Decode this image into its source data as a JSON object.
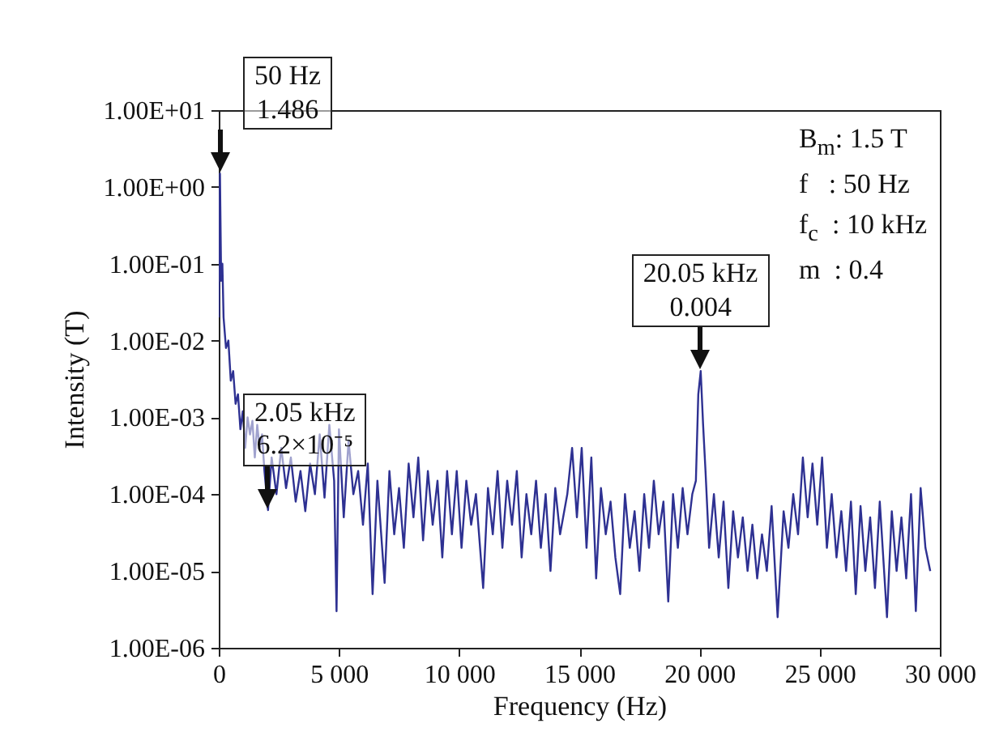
{
  "chart_data": {
    "type": "line",
    "xlabel": "Frequency (Hz)",
    "ylabel": "Intensity (T)",
    "log": "y",
    "grid": false,
    "xlim": [
      0,
      30000
    ],
    "xticks": [
      0,
      {
        "value": 5000,
        "label": "5 000"
      },
      {
        "value": 10000,
        "label": "10 000"
      },
      {
        "value": 15000,
        "label": "15 000"
      },
      {
        "value": 20000,
        "label": "20 000"
      },
      {
        "value": 25000,
        "label": "25 000"
      },
      {
        "value": 30000,
        "label": "30 000"
      }
    ],
    "ylim": [
      1e-06,
      10
    ],
    "yticks": [
      {
        "value": 1e-06,
        "label": "1.00E-06"
      },
      {
        "value": 1e-05,
        "label": "1.00E-05"
      },
      {
        "value": 0.0001,
        "label": "1.00E-04"
      },
      {
        "value": 0.001,
        "label": "1.00E-03"
      },
      {
        "value": 0.01,
        "label": "1.00E-02"
      },
      {
        "value": 0.1,
        "label": "1.00E-01"
      },
      {
        "value": 1,
        "label": "1.00E+00"
      },
      {
        "value": 10,
        "label": "1.00E+01"
      }
    ],
    "x": [
      0,
      50,
      100,
      150,
      200,
      300,
      400,
      500,
      600,
      700,
      800,
      900,
      1000,
      1100,
      1200,
      1300,
      1400,
      1500,
      1600,
      1700,
      1800,
      1900,
      2050,
      2200,
      2400,
      2600,
      2800,
      3000,
      3200,
      3400,
      3600,
      3800,
      4000,
      4200,
      4400,
      4600,
      4800,
      4900,
      5000,
      5200,
      5400,
      5600,
      5800,
      6000,
      6200,
      6400,
      6600,
      6900,
      7100,
      7300,
      7500,
      7700,
      7900,
      8100,
      8300,
      8500,
      8700,
      8900,
      9100,
      9300,
      9500,
      9700,
      9900,
      10100,
      10300,
      10500,
      10700,
      11000,
      11200,
      11400,
      11600,
      11800,
      12000,
      12200,
      12400,
      12600,
      12800,
      13000,
      13200,
      13400,
      13600,
      13800,
      14000,
      14200,
      14500,
      14700,
      14900,
      15100,
      15300,
      15500,
      15700,
      15900,
      16100,
      16300,
      16500,
      16700,
      16900,
      17100,
      17300,
      17500,
      17700,
      17900,
      18100,
      18300,
      18500,
      18700,
      18900,
      19100,
      19300,
      19500,
      19700,
      19850,
      19950,
      20050,
      20150,
      20250,
      20400,
      20600,
      20800,
      21000,
      21200,
      21400,
      21600,
      21800,
      22000,
      22200,
      22400,
      22600,
      22800,
      23000,
      23250,
      23500,
      23700,
      23900,
      24100,
      24300,
      24500,
      24700,
      24900,
      25100,
      25300,
      25500,
      25700,
      25900,
      26100,
      26300,
      26500,
      26700,
      26900,
      27100,
      27300,
      27500,
      27800,
      28000,
      28200,
      28400,
      28600,
      28800,
      29000,
      29200,
      29400,
      29600
    ],
    "series": [
      {
        "color": "#2e3192",
        "values": [
          0.02,
          1.486,
          0.06,
          0.1,
          0.02,
          0.008,
          0.01,
          0.003,
          0.004,
          0.0015,
          0.002,
          0.0007,
          0.0012,
          0.0004,
          0.001,
          0.0006,
          0.0009,
          0.0003,
          0.0008,
          0.0004,
          0.0006,
          0.0002,
          6.2e-05,
          0.0003,
          0.0001,
          0.0004,
          0.00012,
          0.0003,
          8e-05,
          0.0002,
          6e-05,
          0.00025,
          0.0001,
          0.0006,
          9e-05,
          0.0008,
          0.00015,
          3e-06,
          0.0007,
          5e-05,
          0.0005,
          0.0001,
          0.0002,
          4e-05,
          0.00025,
          5e-06,
          0.00015,
          7e-06,
          0.0002,
          3e-05,
          0.00012,
          2e-05,
          0.00025,
          5e-05,
          0.0003,
          2.5e-05,
          0.0002,
          4e-05,
          0.00015,
          1.5e-05,
          0.0002,
          3e-05,
          0.0002,
          2e-05,
          0.00015,
          4e-05,
          0.0001,
          6e-06,
          0.00012,
          3e-05,
          0.0002,
          2e-05,
          0.00015,
          4e-05,
          0.0002,
          1.5e-05,
          0.0001,
          3e-05,
          0.00015,
          2e-05,
          0.0001,
          1e-05,
          0.00012,
          3e-05,
          0.0001,
          0.0004,
          5e-05,
          0.0004,
          2e-05,
          0.0003,
          8e-06,
          0.00012,
          3e-05,
          8e-05,
          1.5e-05,
          5e-06,
          0.0001,
          2e-05,
          6e-05,
          1e-05,
          0.0001,
          2e-05,
          0.00015,
          3e-05,
          8e-05,
          4e-06,
          0.0001,
          2e-05,
          0.00012,
          3e-05,
          0.0001,
          0.00015,
          0.002,
          0.004,
          0.0008,
          0.0002,
          2e-05,
          0.0001,
          1.5e-05,
          8e-05,
          6e-06,
          6e-05,
          1.5e-05,
          5e-05,
          1e-05,
          4e-05,
          8e-06,
          3e-05,
          1e-05,
          7e-05,
          2.5e-06,
          6e-05,
          2e-05,
          0.0001,
          3e-05,
          0.0003,
          5e-05,
          0.00025,
          4e-05,
          0.0003,
          2e-05,
          0.0001,
          1.5e-05,
          6e-05,
          1e-05,
          8e-05,
          5e-06,
          7e-05,
          1e-05,
          5e-05,
          6e-06,
          8e-05,
          2.5e-06,
          6e-05,
          1e-05,
          5e-05,
          8e-06,
          0.0001,
          3e-06,
          0.00012,
          2e-05,
          1e-05
        ]
      }
    ],
    "annotations": [
      {
        "text": "50 Hz\n1.486",
        "x": 50,
        "y": 1.486
      },
      {
        "text": "2.05 kHz\n6.2×10⁻⁵",
        "x": 2050,
        "y": 6.2e-05
      },
      {
        "text": "20.05 kHz\n0.004",
        "x": 20050,
        "y": 0.004
      },
      "B$_{m}$: 1.5 T",
      "f   : 50 Hz",
      "f$_{c}$  : 10 kHz",
      "m  : 0.4"
    ]
  }
}
